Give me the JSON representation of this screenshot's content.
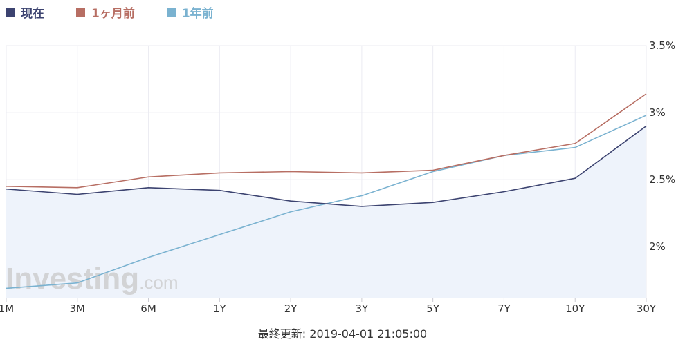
{
  "legend": {
    "items": [
      {
        "label": "現在",
        "color": "#3c4370"
      },
      {
        "label": "1ヶ月前",
        "color": "#b76e63"
      },
      {
        "label": "1年前",
        "color": "#7ab2d0"
      }
    ]
  },
  "footer": {
    "prefix": "最終更新:",
    "timestamp": "2019-04-01 21:05:00"
  },
  "watermark": {
    "brand": "Investing",
    "suffix": ".com"
  },
  "chart_data": {
    "type": "line",
    "categories": [
      "1M",
      "3M",
      "6M",
      "1Y",
      "2Y",
      "3Y",
      "5Y",
      "7Y",
      "10Y",
      "30Y"
    ],
    "y_ticks": [
      "2%",
      "2.5%",
      "3%",
      "3.5%"
    ],
    "y_tick_values": [
      2.0,
      2.5,
      3.0,
      3.5
    ],
    "ylim": [
      1.62,
      3.5
    ],
    "grid": true,
    "legend_position": "top-left",
    "series": [
      {
        "name": "現在",
        "color": "#3c4370",
        "fill": "#eef3fb",
        "values": [
          2.43,
          2.39,
          2.44,
          2.42,
          2.34,
          2.3,
          2.33,
          2.41,
          2.51,
          2.9
        ]
      },
      {
        "name": "1ヶ月前",
        "color": "#b76e63",
        "values": [
          2.45,
          2.44,
          2.52,
          2.55,
          2.56,
          2.55,
          2.57,
          2.68,
          2.77,
          3.14
        ]
      },
      {
        "name": "1年前",
        "color": "#7ab2d0",
        "values": [
          1.69,
          1.73,
          1.92,
          2.09,
          2.26,
          2.38,
          2.56,
          2.68,
          2.74,
          2.98
        ]
      }
    ]
  }
}
